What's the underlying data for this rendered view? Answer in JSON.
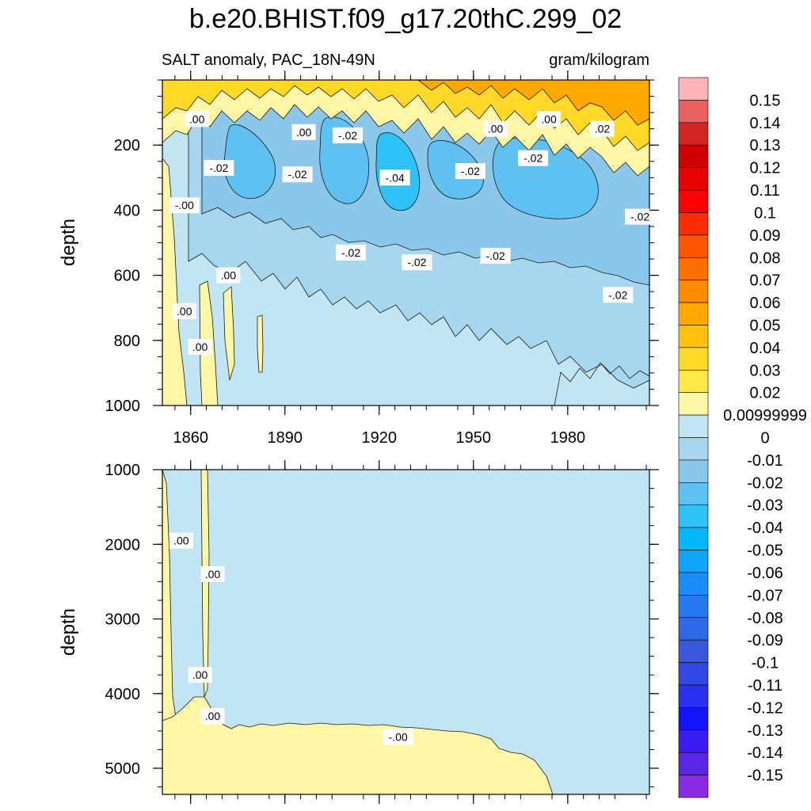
{
  "chart_data": {
    "type": "heatmap",
    "title": "b.e20.BHIST.f09_g17.20thC.299_02",
    "subtitle_left": "SALT anomaly, PAC_18N-49N",
    "subtitle_right": "gram/kilogram",
    "x_ticks": [
      "1860",
      "1890",
      "1920",
      "1950",
      "1980"
    ],
    "x_tick_values": [
      1860,
      1890,
      1920,
      1950,
      1980
    ],
    "xlim": [
      1851,
      2006
    ],
    "panels": [
      {
        "name": "upper",
        "ylabel": "depth",
        "ylim": [
          0,
          1000
        ],
        "y_inverted": true,
        "y_ticks": [
          "200",
          "400",
          "600",
          "800",
          "1000"
        ],
        "y_tick_values": [
          200,
          400,
          600,
          800,
          1000
        ],
        "contour_labels": [
          {
            "text": ".00",
            "x": 1862,
            "y": 120
          },
          {
            "text": ".00",
            "x": 1896,
            "y": 160
          },
          {
            "text": "-.02",
            "x": 1910,
            "y": 170
          },
          {
            "text": ".00",
            "x": 1957,
            "y": 150
          },
          {
            "text": ".00",
            "x": 1974,
            "y": 120
          },
          {
            "text": ".02",
            "x": 1991,
            "y": 150
          },
          {
            "text": "-.02",
            "x": 1869,
            "y": 270
          },
          {
            "text": "-.02",
            "x": 1894,
            "y": 290
          },
          {
            "text": "-.04",
            "x": 1925,
            "y": 300
          },
          {
            "text": "-.02",
            "x": 1949,
            "y": 280
          },
          {
            "text": "-.02",
            "x": 1969,
            "y": 240
          },
          {
            "text": "-.00",
            "x": 1858,
            "y": 385
          },
          {
            "text": "-.02",
            "x": 2003,
            "y": 420
          },
          {
            "text": "-.02",
            "x": 1911,
            "y": 530
          },
          {
            "text": "-.02",
            "x": 1932,
            "y": 560
          },
          {
            "text": "-.02",
            "x": 1957,
            "y": 540
          },
          {
            "text": ".00",
            "x": 1872,
            "y": 600
          },
          {
            "text": "-.02",
            "x": 1996,
            "y": 660
          },
          {
            "text": ".00",
            "x": 1858,
            "y": 710
          },
          {
            "text": ".00",
            "x": 1863,
            "y": 820
          }
        ]
      },
      {
        "name": "lower",
        "ylabel": "depth",
        "ylim": [
          1000,
          5350
        ],
        "y_inverted": true,
        "y_ticks": [
          "1000",
          "2000",
          "3000",
          "4000",
          "5000"
        ],
        "y_tick_values": [
          1000,
          2000,
          3000,
          4000,
          5000
        ],
        "contour_labels": [
          {
            "text": ".00",
            "x": 1857,
            "y": 1950
          },
          {
            "text": ".00",
            "x": 1867,
            "y": 2400
          },
          {
            "text": ".00",
            "x": 1863,
            "y": 3750
          },
          {
            "text": ".00",
            "x": 1867,
            "y": 4300
          },
          {
            "text": "-.00",
            "x": 1926,
            "y": 4580
          }
        ]
      }
    ],
    "colorbar": {
      "levels_top_to_bottom": [
        "0.15",
        "0.14",
        "0.13",
        "0.12",
        "0.11",
        "0.1",
        "0.09",
        "0.08",
        "0.07",
        "0.06",
        "0.05",
        "0.04",
        "0.03",
        "0.02",
        "0.00999999",
        "0",
        "-0.01",
        "-0.02",
        "-0.03",
        "-0.04",
        "-0.05",
        "-0.06",
        "-0.07",
        "-0.08",
        "-0.09",
        "-0.1",
        "-0.11",
        "-0.12",
        "-0.13",
        "-0.14",
        "-0.15"
      ],
      "colors_top_to_bottom": [
        "#FFB5B5",
        "#E86060",
        "#D42525",
        "#CF0000",
        "#E70000",
        "#FF0000",
        "#FF2B00",
        "#FF5500",
        "#FF7000",
        "#FF8C00",
        "#FFA800",
        "#FFC10F",
        "#FFD828",
        "#FFE849",
        "#FFF6A6",
        "#C2E5F4",
        "#A6D7EF",
        "#8BC7EB",
        "#5FC0F2",
        "#2EC2F6",
        "#00B8F8",
        "#0FA3FA",
        "#1A8DF8",
        "#2679F0",
        "#2F68E4",
        "#3A59D9",
        "#3347E4",
        "#2A30F0",
        "#1414FA",
        "#3A1CF2",
        "#5A26E6",
        "#8A2BE2"
      ]
    },
    "colors": {
      "neutral_positive": "#FFF6A6",
      "neutral_negative": "#C2E5F4",
      "deep_negative": "#5FC0F2",
      "contour_line": "#1a1a1a"
    }
  }
}
